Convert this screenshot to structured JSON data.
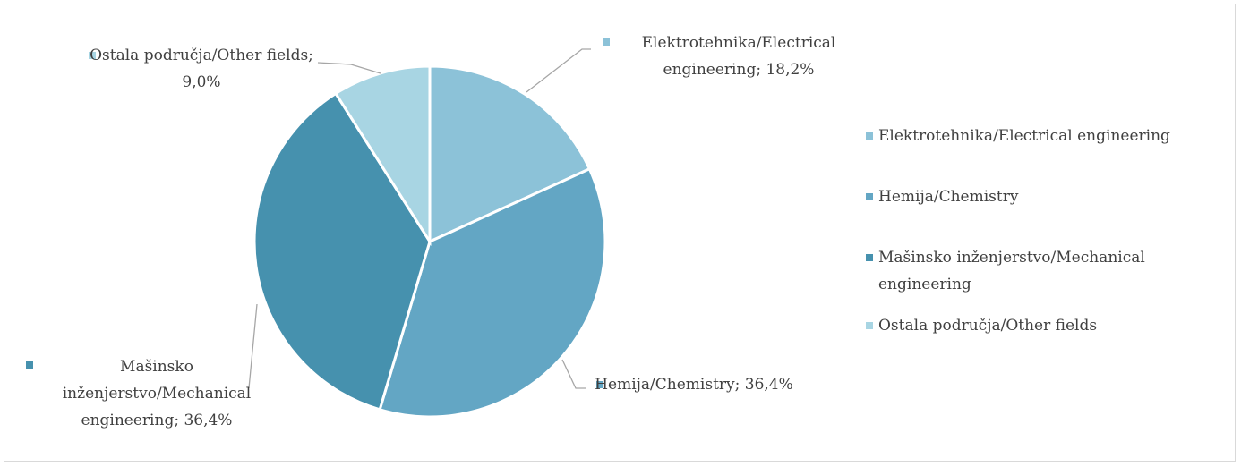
{
  "chart_data": {
    "type": "pie",
    "categories": [
      "Elektrotehnika/Electrical engineering",
      "Hemija/Chemistry",
      "Mašinsko inženjerstvo/Mechanical engineering",
      "Ostala područja/Other fields"
    ],
    "values": [
      18.2,
      36.4,
      36.4,
      9.0
    ],
    "value_labels": [
      "Elektrotehnika/Electrical engineering; 18,2%",
      "Hemija/Chemistry; 36,4%",
      "Mašinsko inženjerstvo/Mechanical engineering; 36,4%",
      "Ostala područja/Other fields; 9,0%"
    ],
    "colors": [
      "#8cc2d8",
      "#63a6c4",
      "#4691ae",
      "#a8d5e3"
    ],
    "legend": "right"
  }
}
